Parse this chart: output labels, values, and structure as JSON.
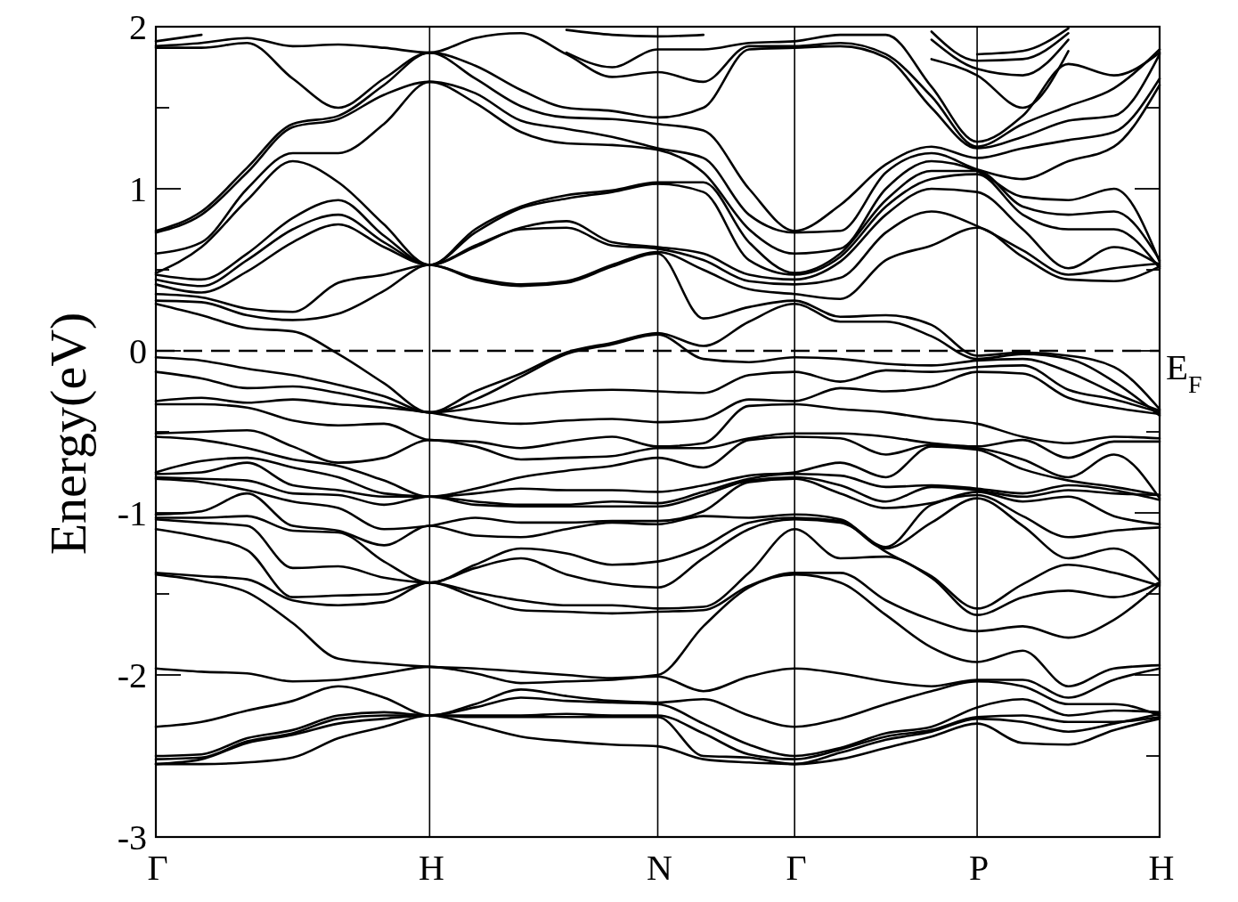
{
  "chart_data": {
    "type": "line",
    "ylabel": "Energy(eV)",
    "categories": [
      "Γ",
      null,
      null,
      null,
      null,
      null,
      "H",
      null,
      null,
      null,
      null,
      "N",
      null,
      null,
      "Γ",
      null,
      null,
      null,
      "P",
      null,
      null,
      null,
      "H"
    ],
    "ylim": [
      -3,
      2
    ],
    "yticks": [
      -3,
      {
        "value": -2.5,
        "label": null
      },
      -2,
      {
        "value": -1.5,
        "label": null
      },
      -1,
      {
        "value": -0.5,
        "label": null
      },
      0,
      {
        "value": 0.5,
        "label": null
      },
      1,
      {
        "value": 1.5,
        "label": null
      },
      2
    ],
    "grid": "x",
    "ref_lines": [
      {
        "axis": "y",
        "value": 0,
        "label": "E$_{F}$",
        "line_style": "dashed"
      }
    ],
    "series": [
      {
        "color": "#000000",
        "values": [
          -2.55,
          -2.55,
          -2.54,
          -2.51,
          -2.39,
          -2.32,
          -2.25,
          -2.31,
          -2.38,
          -2.41,
          -2.43,
          -2.44,
          -2.52,
          -2.54,
          -2.55,
          -2.52,
          -2.45,
          -2.38,
          -2.3,
          -2.42,
          -2.43,
          -2.34,
          -2.27
        ]
      },
      {
        "color": "#000000",
        "values": [
          -2.55,
          -2.52,
          -2.42,
          -2.37,
          -2.3,
          -2.27,
          -2.25,
          -2.26,
          -2.26,
          -2.26,
          -2.26,
          -2.26,
          -2.5,
          -2.51,
          -2.55,
          -2.48,
          -2.4,
          -2.35,
          -2.27,
          -2.29,
          -2.35,
          -2.3,
          -2.24
        ]
      },
      {
        "color": "#000000",
        "values": [
          -2.52,
          -2.51,
          -2.41,
          -2.36,
          -2.27,
          -2.25,
          -2.25,
          -2.25,
          -2.25,
          -2.24,
          -2.25,
          -2.25,
          -2.36,
          -2.49,
          -2.52,
          -2.46,
          -2.38,
          -2.34,
          -2.26,
          -2.25,
          -2.29,
          -2.29,
          -2.26
        ]
      },
      {
        "color": "#000000",
        "values": [
          -2.5,
          -2.49,
          -2.39,
          -2.34,
          -2.25,
          -2.23,
          -2.25,
          -2.2,
          -2.14,
          -2.16,
          -2.17,
          -2.18,
          -2.3,
          -2.43,
          -2.5,
          -2.45,
          -2.36,
          -2.32,
          -2.2,
          -2.15,
          -2.25,
          -2.22,
          -2.23
        ]
      },
      {
        "color": "#000000",
        "values": [
          -2.32,
          -2.29,
          -2.22,
          -2.16,
          -2.07,
          -2.14,
          -2.25,
          -2.18,
          -2.09,
          -2.13,
          -2.16,
          -2.17,
          -2.15,
          -2.25,
          -2.32,
          -2.27,
          -2.18,
          -2.1,
          -2.04,
          -2.07,
          -2.18,
          -2.18,
          -2.25
        ]
      },
      {
        "color": "#000000",
        "values": [
          -1.96,
          -1.98,
          -1.99,
          -2.04,
          -2.03,
          -1.99,
          -1.95,
          -1.99,
          -2.05,
          -2.04,
          -2.03,
          -2.01,
          -2.1,
          -2.01,
          -1.96,
          -1.99,
          -2.04,
          -2.07,
          -2.03,
          -2.03,
          -2.14,
          -2.03,
          -1.96
        ]
      },
      {
        "color": "#000000",
        "values": [
          -1.38,
          -1.42,
          -1.49,
          -1.68,
          -1.9,
          -1.93,
          -1.95,
          -1.96,
          -1.98,
          -2.0,
          -2.02,
          -2.0,
          -1.7,
          -1.46,
          -1.38,
          -1.43,
          -1.63,
          -1.83,
          -1.92,
          -1.85,
          -2.07,
          -1.96,
          -1.94
        ]
      },
      {
        "color": "#000000",
        "values": [
          -1.37,
          -1.39,
          -1.41,
          -1.54,
          -1.57,
          -1.55,
          -1.43,
          -1.52,
          -1.6,
          -1.61,
          -1.62,
          -1.61,
          -1.6,
          -1.45,
          -1.37,
          -1.37,
          -1.54,
          -1.66,
          -1.73,
          -1.7,
          -1.77,
          -1.66,
          -1.44
        ]
      },
      {
        "color": "#000000",
        "values": [
          -1.1,
          -1.15,
          -1.23,
          -1.52,
          -1.51,
          -1.5,
          -1.43,
          -1.49,
          -1.54,
          -1.57,
          -1.57,
          -1.59,
          -1.58,
          -1.37,
          -1.1,
          -1.28,
          -1.27,
          -1.4,
          -1.63,
          -1.52,
          -1.48,
          -1.52,
          -1.43
        ]
      },
      {
        "color": "#000000",
        "values": [
          -1.04,
          -1.06,
          -1.08,
          -1.34,
          -1.33,
          -1.4,
          -1.43,
          -1.34,
          -1.28,
          -1.38,
          -1.44,
          -1.46,
          -1.28,
          -1.1,
          -1.04,
          -1.06,
          -1.24,
          -1.39,
          -1.59,
          -1.44,
          -1.32,
          -1.37,
          -1.45
        ]
      },
      {
        "color": "#000000",
        "values": [
          -1.03,
          -1.03,
          -1.02,
          -1.11,
          -1.12,
          -1.3,
          -1.43,
          -1.32,
          -1.22,
          -1.25,
          -1.32,
          -1.3,
          -1.21,
          -1.06,
          -1.03,
          -1.05,
          -1.22,
          -1.06,
          -0.91,
          -1.08,
          -1.28,
          -1.22,
          -1.42
        ]
      },
      {
        "color": "#000000",
        "values": [
          -1.01,
          -0.99,
          -0.88,
          -1.08,
          -1.11,
          -1.2,
          -1.08,
          -1.14,
          -1.15,
          -1.1,
          -1.06,
          -1.07,
          -1.02,
          -1.03,
          -1.01,
          -1.04,
          -1.21,
          -0.95,
          -0.89,
          -1.02,
          -1.15,
          -1.11,
          -1.09
        ]
      },
      {
        "color": "#000000",
        "values": [
          -0.79,
          -0.81,
          -0.86,
          -0.93,
          -0.97,
          -1.1,
          -1.08,
          -1.03,
          -1.06,
          -1.06,
          -1.05,
          -1.05,
          -0.99,
          -0.81,
          -0.79,
          -0.88,
          -0.97,
          -0.94,
          -0.87,
          -0.93,
          -0.9,
          -1.02,
          -1.07
        ]
      },
      {
        "color": "#000000",
        "values": [
          -0.78,
          -0.79,
          -0.8,
          -0.88,
          -0.89,
          -0.95,
          -0.9,
          -0.95,
          -0.96,
          -0.96,
          -0.96,
          -0.96,
          -0.89,
          -0.8,
          -0.78,
          -0.83,
          -0.93,
          -0.84,
          -0.86,
          -0.9,
          -0.86,
          -0.88,
          -0.89
        ]
      },
      {
        "color": "#000000",
        "values": [
          -0.76,
          -0.75,
          -0.69,
          -0.83,
          -0.86,
          -0.9,
          -0.9,
          -0.93,
          -0.95,
          -0.95,
          -0.93,
          -0.94,
          -0.87,
          -0.79,
          -0.76,
          -0.77,
          -0.84,
          -0.83,
          -0.85,
          -0.88,
          -0.83,
          -0.86,
          -0.92
        ]
      },
      {
        "color": "#000000",
        "values": [
          -0.75,
          -0.68,
          -0.66,
          -0.72,
          -0.78,
          -0.88,
          -0.9,
          -0.88,
          -0.85,
          -0.86,
          -0.86,
          -0.87,
          -0.83,
          -0.77,
          -0.75,
          -0.69,
          -0.78,
          -0.59,
          -0.61,
          -0.73,
          -0.8,
          -0.84,
          -0.89
        ]
      },
      {
        "color": "#000000",
        "values": [
          -0.53,
          -0.55,
          -0.6,
          -0.67,
          -0.71,
          -0.8,
          -0.9,
          -0.85,
          -0.78,
          -0.74,
          -0.71,
          -0.66,
          -0.72,
          -0.55,
          -0.53,
          -0.54,
          -0.64,
          -0.58,
          -0.6,
          -0.67,
          -0.78,
          -0.64,
          -0.91
        ]
      },
      {
        "color": "#000000",
        "values": [
          -0.51,
          -0.5,
          -0.49,
          -0.59,
          -0.69,
          -0.66,
          -0.55,
          -0.59,
          -0.67,
          -0.66,
          -0.65,
          -0.6,
          -0.6,
          -0.54,
          -0.51,
          -0.51,
          -0.53,
          -0.57,
          -0.59,
          -0.55,
          -0.66,
          -0.56,
          -0.56
        ]
      },
      {
        "color": "#000000",
        "values": [
          -0.33,
          -0.33,
          -0.35,
          -0.43,
          -0.46,
          -0.45,
          -0.55,
          -0.56,
          -0.6,
          -0.56,
          -0.53,
          -0.59,
          -0.57,
          -0.34,
          -0.33,
          -0.36,
          -0.38,
          -0.42,
          -0.45,
          -0.53,
          -0.57,
          -0.53,
          -0.54
        ]
      },
      {
        "color": "#000000",
        "values": [
          -0.31,
          -0.29,
          -0.32,
          -0.3,
          -0.33,
          -0.35,
          -0.38,
          -0.43,
          -0.45,
          -0.43,
          -0.42,
          -0.44,
          -0.42,
          -0.3,
          -0.31,
          -0.23,
          -0.25,
          -0.22,
          -0.13,
          -0.14,
          -0.29,
          -0.35,
          -0.39
        ]
      },
      {
        "color": "#000000",
        "values": [
          -0.13,
          -0.17,
          -0.23,
          -0.22,
          -0.26,
          -0.32,
          -0.38,
          -0.35,
          -0.28,
          -0.25,
          -0.24,
          -0.25,
          -0.26,
          -0.15,
          -0.13,
          -0.19,
          -0.12,
          -0.13,
          -0.1,
          -0.09,
          -0.24,
          -0.3,
          -0.38
        ]
      },
      {
        "color": "#000000",
        "values": [
          -0.04,
          -0.06,
          -0.11,
          -0.15,
          -0.21,
          -0.28,
          -0.38,
          -0.3,
          -0.16,
          -0.02,
          0.04,
          0.1,
          -0.05,
          -0.07,
          -0.04,
          -0.05,
          -0.08,
          -0.09,
          -0.06,
          -0.05,
          -0.13,
          -0.26,
          -0.37
        ]
      },
      {
        "color": "#000000",
        "values": [
          0.29,
          0.22,
          0.14,
          0.12,
          -0.02,
          -0.2,
          -0.38,
          -0.25,
          -0.14,
          -0.01,
          0.05,
          0.11,
          0.03,
          0.18,
          0.29,
          0.18,
          0.18,
          0.09,
          -0.05,
          -0.02,
          -0.05,
          -0.19,
          -0.4
        ]
      },
      {
        "color": "#000000",
        "values": [
          0.31,
          0.3,
          0.22,
          0.19,
          0.23,
          0.37,
          0.53,
          0.44,
          0.4,
          0.42,
          0.52,
          0.6,
          0.2,
          0.27,
          0.31,
          0.21,
          0.22,
          0.16,
          -0.03,
          -0.01,
          -0.03,
          -0.1,
          -0.36
        ]
      },
      {
        "color": "#000000",
        "values": [
          0.35,
          0.33,
          0.26,
          0.24,
          0.42,
          0.47,
          0.53,
          0.45,
          0.41,
          0.43,
          0.53,
          0.61,
          0.5,
          0.38,
          0.35,
          0.32,
          0.56,
          0.65,
          0.76,
          0.58,
          0.44,
          0.43,
          0.52
        ]
      },
      {
        "color": "#000000",
        "values": [
          0.41,
          0.36,
          0.49,
          0.67,
          0.78,
          0.64,
          0.53,
          0.64,
          0.75,
          0.76,
          0.65,
          0.63,
          0.56,
          0.43,
          0.41,
          0.45,
          0.73,
          0.86,
          0.77,
          0.62,
          0.47,
          0.51,
          0.54
        ]
      },
      {
        "color": "#000000",
        "values": [
          0.44,
          0.4,
          0.56,
          0.75,
          0.84,
          0.67,
          0.53,
          0.65,
          0.76,
          0.8,
          0.67,
          0.64,
          0.6,
          0.47,
          0.44,
          0.55,
          0.84,
          1.0,
          0.98,
          0.75,
          0.51,
          0.64,
          0.53
        ]
      },
      {
        "color": "#000000",
        "values": [
          0.47,
          0.44,
          0.6,
          0.82,
          0.93,
          0.71,
          0.53,
          0.73,
          0.88,
          0.94,
          0.98,
          1.03,
          0.98,
          0.56,
          0.47,
          0.58,
          0.89,
          1.06,
          1.09,
          0.84,
          0.75,
          0.75,
          0.51
        ]
      },
      {
        "color": "#000000",
        "values": [
          0.48,
          0.64,
          0.93,
          1.17,
          1.04,
          0.78,
          0.53,
          0.75,
          0.89,
          0.96,
          0.99,
          1.04,
          1.04,
          0.67,
          0.48,
          0.6,
          0.93,
          1.11,
          1.11,
          0.89,
          0.84,
          0.86,
          0.56
        ]
      },
      {
        "color": "#000000",
        "values": [
          0.6,
          0.67,
          1.0,
          1.22,
          1.22,
          1.4,
          1.66,
          1.53,
          1.35,
          1.28,
          1.27,
          1.24,
          1.1,
          0.75,
          0.6,
          0.63,
          1.0,
          1.17,
          1.11,
          0.95,
          0.93,
          1.0,
          0.55
        ]
      },
      {
        "color": "#000000",
        "values": [
          0.73,
          0.84,
          1.1,
          1.38,
          1.43,
          1.58,
          1.66,
          1.59,
          1.42,
          1.37,
          1.32,
          1.25,
          1.19,
          0.84,
          0.73,
          0.74,
          1.1,
          1.22,
          1.12,
          1.06,
          1.17,
          1.26,
          1.64
        ]
      },
      {
        "color": "#000000",
        "values": [
          0.74,
          0.86,
          1.13,
          1.4,
          1.45,
          1.64,
          1.84,
          1.68,
          1.51,
          1.44,
          1.43,
          1.4,
          1.36,
          1.0,
          0.74,
          0.9,
          1.15,
          1.26,
          1.19,
          1.25,
          1.3,
          1.35,
          1.68
        ]
      },
      {
        "color": "#000000",
        "values": [
          1.87,
          1.87,
          1.9,
          1.68,
          1.5,
          1.68,
          1.84,
          1.76,
          1.61,
          1.5,
          1.48,
          1.44,
          1.5,
          1.86,
          1.87,
          1.88,
          1.81,
          1.5,
          1.25,
          1.32,
          1.42,
          1.45,
          1.83
        ]
      },
      {
        "color": "#000000",
        "values": [
          1.88,
          1.9,
          1.93,
          1.88,
          1.89,
          1.87,
          1.84,
          1.93,
          1.96,
          1.83,
          1.69,
          1.72,
          1.66,
          1.88,
          1.88,
          1.9,
          1.83,
          1.57,
          1.26,
          1.4,
          1.51,
          1.62,
          1.86
        ]
      },
      {
        "color": "#000000",
        "values": [
          1.91,
          1.95,
          null,
          null,
          null,
          null,
          null,
          null,
          null,
          1.84,
          1.75,
          1.86,
          1.86,
          1.9,
          1.91,
          1.95,
          1.95,
          1.63,
          1.29,
          1.45,
          1.77,
          1.7,
          1.84
        ]
      },
      {
        "color": "#000000",
        "values": [
          null,
          null,
          null,
          null,
          null,
          null,
          null,
          null,
          null,
          1.98,
          1.95,
          1.94,
          1.95,
          null,
          null,
          null,
          null,
          1.8,
          1.7,
          1.5,
          1.85,
          null,
          null
        ]
      },
      {
        "color": "#000000",
        "values": [
          null,
          null,
          null,
          null,
          null,
          null,
          null,
          null,
          null,
          null,
          null,
          null,
          null,
          null,
          null,
          null,
          null,
          1.92,
          1.74,
          1.7,
          1.92,
          null,
          null
        ]
      },
      {
        "color": "#000000",
        "values": [
          null,
          null,
          null,
          null,
          null,
          null,
          null,
          null,
          null,
          null,
          null,
          null,
          null,
          null,
          null,
          null,
          null,
          1.97,
          1.79,
          1.8,
          1.96,
          null,
          null
        ]
      },
      {
        "color": "#000000",
        "values": [
          null,
          null,
          null,
          null,
          null,
          null,
          null,
          null,
          null,
          null,
          null,
          null,
          null,
          null,
          null,
          null,
          null,
          null,
          1.83,
          1.85,
          1.99,
          null,
          null
        ]
      }
    ]
  }
}
